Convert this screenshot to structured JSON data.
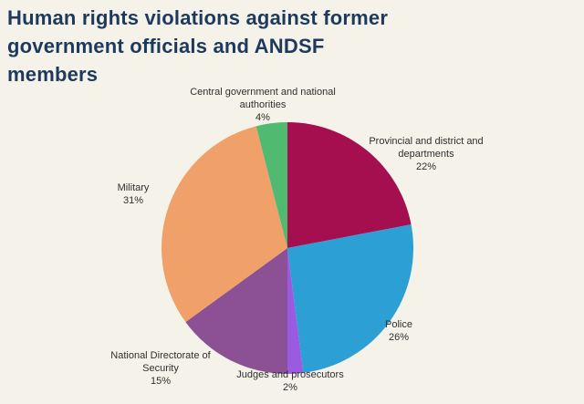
{
  "title": {
    "full": "Human rights violations against former government officials and ANDSF members",
    "lines": [
      "Human rights violations against former",
      "government officials and ANDSF",
      "members"
    ]
  },
  "colors": {
    "background": "#f5f2ea",
    "title_text": "#1d3a5c",
    "label_text": "#2f2f2f"
  },
  "chart_data": {
    "type": "pie",
    "title": "Human rights violations against former government officials and ANDSF members",
    "start": "top",
    "direction": "clockwise",
    "legend_position": "outside-labels",
    "slices": [
      {
        "label": "Provincial and district and departments",
        "value": 22,
        "pct_label": "22%",
        "color": "#a50f4f"
      },
      {
        "label": "Police",
        "value": 26,
        "pct_label": "26%",
        "color": "#2c9fd4"
      },
      {
        "label": "Judges and prosecutors",
        "value": 2,
        "pct_label": "2%",
        "color": "#9b5be0"
      },
      {
        "label": "National Directorate of Security",
        "value": 15,
        "pct_label": "15%",
        "color": "#8c5194"
      },
      {
        "label": "Military",
        "value": 31,
        "pct_label": "31%",
        "color": "#f0a169"
      },
      {
        "label": "Central government and national authorities",
        "value": 4,
        "pct_label": "4%",
        "color": "#4fba70"
      }
    ]
  }
}
